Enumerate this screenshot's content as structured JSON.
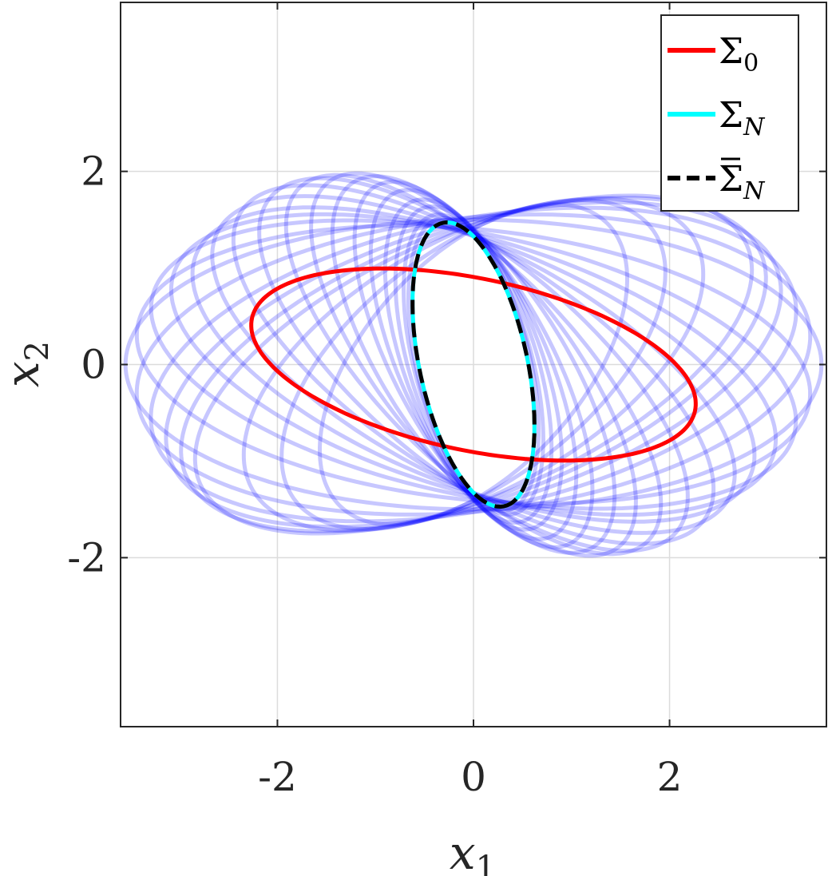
{
  "chart_data": {
    "type": "line",
    "xlabel": "x",
    "xlabel_sub": "1",
    "ylabel": "x",
    "ylabel_sub": "2",
    "xlim": [
      -3.6,
      3.6
    ],
    "ylim": [
      -3.75,
      3.75
    ],
    "xticks": [
      -2,
      0,
      2
    ],
    "yticks": [
      -2,
      0,
      2
    ],
    "xtick_labels": [
      "-2",
      "0",
      "2"
    ],
    "ytick_labels": [
      "-2",
      "0",
      "2"
    ],
    "grid": true,
    "legend_position": "top-right",
    "legend": [
      {
        "symbol": "Σ",
        "sub": "0",
        "sub_italic": false,
        "bar": false,
        "color": "#ff0000",
        "style": "solid"
      },
      {
        "symbol": "Σ",
        "sub": "N",
        "sub_italic": true,
        "bar": false,
        "color": "#00ffff",
        "style": "solid"
      },
      {
        "symbol": "Σ",
        "sub": "N",
        "sub_italic": true,
        "bar": true,
        "color": "#000000",
        "style": "dashed"
      }
    ],
    "series": [
      {
        "color": "#ff0000",
        "style": "solid",
        "a": 2.31,
        "b": 0.89,
        "angle_deg": -12
      },
      {
        "color": "#00ffff",
        "style": "solid",
        "a": 1.5,
        "b": 0.55,
        "angle_deg": -78
      },
      {
        "color": "#000000",
        "style": "dashed",
        "a": 1.5,
        "b": 0.55,
        "angle_deg": -78
      }
    ],
    "trajectory": {
      "color": "#0000ff",
      "opacity": 0.22,
      "ellipses": [
        {
          "a": 3.55,
          "b": 1.5,
          "angle_deg": 0
        },
        {
          "a": 3.45,
          "b": 1.52,
          "angle_deg": 6
        },
        {
          "a": 3.35,
          "b": 1.5,
          "angle_deg": 12
        },
        {
          "a": 3.25,
          "b": 1.45,
          "angle_deg": 17
        },
        {
          "a": 3.15,
          "b": 1.4,
          "angle_deg": 21
        },
        {
          "a": 3.05,
          "b": 1.35,
          "angle_deg": 24
        },
        {
          "a": 3.45,
          "b": 1.4,
          "angle_deg": -6
        },
        {
          "a": 3.35,
          "b": 1.35,
          "angle_deg": -12
        },
        {
          "a": 3.2,
          "b": 1.3,
          "angle_deg": -17
        },
        {
          "a": 3.05,
          "b": 1.25,
          "angle_deg": -22
        },
        {
          "a": 2.95,
          "b": 1.2,
          "angle_deg": -28
        },
        {
          "a": 2.85,
          "b": 1.15,
          "angle_deg": -34
        },
        {
          "a": 2.7,
          "b": 1.1,
          "angle_deg": -40
        },
        {
          "a": 2.55,
          "b": 1.0,
          "angle_deg": -46
        },
        {
          "a": 2.4,
          "b": 0.95,
          "angle_deg": -52
        },
        {
          "a": 2.25,
          "b": 0.9,
          "angle_deg": -57
        },
        {
          "a": 2.1,
          "b": 0.8,
          "angle_deg": -62
        },
        {
          "a": 1.95,
          "b": 0.75,
          "angle_deg": -66
        },
        {
          "a": 1.8,
          "b": 0.7,
          "angle_deg": -70
        },
        {
          "a": 1.7,
          "b": 0.65,
          "angle_deg": -73
        },
        {
          "a": 1.6,
          "b": 0.6,
          "angle_deg": -75
        },
        {
          "a": 1.55,
          "b": 0.58,
          "angle_deg": -77
        },
        {
          "a": 2.6,
          "b": 1.3,
          "angle_deg": 30
        },
        {
          "a": 2.3,
          "b": 1.2,
          "angle_deg": 38
        },
        {
          "a": 2.0,
          "b": 1.1,
          "angle_deg": 48
        }
      ]
    }
  }
}
